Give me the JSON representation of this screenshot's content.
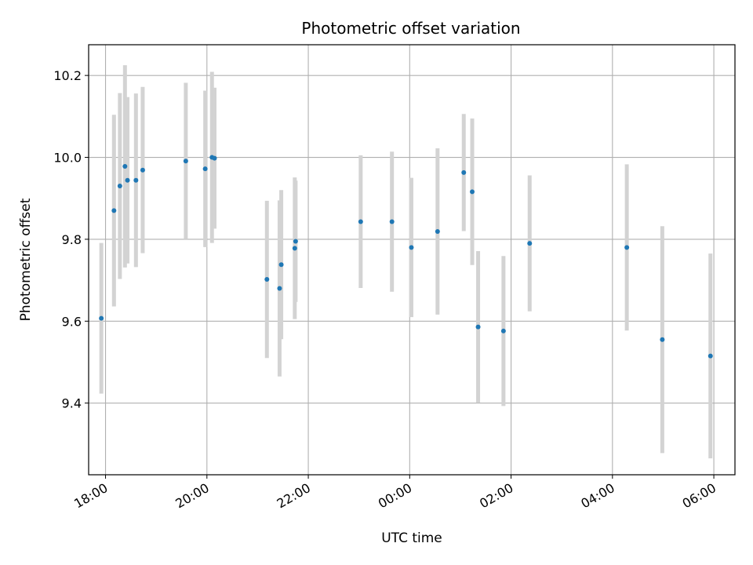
{
  "chart_data": {
    "type": "scatter",
    "title": "Photometric offset variation",
    "xlabel": "UTC time",
    "ylabel": "Photometric offset",
    "x_unit": "UTC time",
    "xlim": [
      "17:40",
      "06:25 (+1d)"
    ],
    "ylim": [
      9.225,
      10.275
    ],
    "x_ticks": [
      "18:00",
      "20:00",
      "22:00",
      "00:00",
      "02:00",
      "04:00",
      "06:00"
    ],
    "y_ticks": [
      "9.4",
      "9.6",
      "9.8",
      "10.0",
      "10.2"
    ],
    "grid": true,
    "series_color": "#1f77b4",
    "errorbar_color": "#d3d3d3",
    "points": [
      {
        "t": "17:55",
        "y": 9.607,
        "lo": 9.423,
        "hi": 9.791
      },
      {
        "t": "18:10",
        "y": 9.87,
        "lo": 9.636,
        "hi": 10.104
      },
      {
        "t": "18:17",
        "y": 9.93,
        "lo": 9.703,
        "hi": 10.157
      },
      {
        "t": "18:23",
        "y": 9.978,
        "lo": 9.731,
        "hi": 10.225
      },
      {
        "t": "18:26",
        "y": 9.944,
        "lo": 9.741,
        "hi": 10.147
      },
      {
        "t": "18:36",
        "y": 9.944,
        "lo": 9.732,
        "hi": 10.156
      },
      {
        "t": "18:44",
        "y": 9.969,
        "lo": 9.766,
        "hi": 10.172
      },
      {
        "t": "19:35",
        "y": 9.991,
        "lo": 9.8,
        "hi": 10.182
      },
      {
        "t": "19:58",
        "y": 9.972,
        "lo": 9.781,
        "hi": 10.163
      },
      {
        "t": "20:06",
        "y": 10.0,
        "lo": 9.791,
        "hi": 10.209
      },
      {
        "t": "20:09",
        "y": 9.998,
        "lo": 9.826,
        "hi": 10.17
      },
      {
        "t": "21:11",
        "y": 9.702,
        "lo": 9.51,
        "hi": 9.894
      },
      {
        "t": "21:26",
        "y": 9.68,
        "lo": 9.465,
        "hi": 9.895
      },
      {
        "t": "21:28",
        "y": 9.738,
        "lo": 9.556,
        "hi": 9.92
      },
      {
        "t": "21:44",
        "y": 9.778,
        "lo": 9.605,
        "hi": 9.951
      },
      {
        "t": "21:45",
        "y": 9.795,
        "lo": 9.647,
        "hi": 9.943
      },
      {
        "t": "23:02",
        "y": 9.843,
        "lo": 9.681,
        "hi": 10.005
      },
      {
        "t": "23:39",
        "y": 9.843,
        "lo": 9.672,
        "hi": 10.014
      },
      {
        "t": "00:02",
        "y": 9.78,
        "lo": 9.61,
        "hi": 9.95
      },
      {
        "t": "00:33",
        "y": 9.819,
        "lo": 9.616,
        "hi": 10.022
      },
      {
        "t": "01:04",
        "y": 9.963,
        "lo": 9.82,
        "hi": 10.106
      },
      {
        "t": "01:14",
        "y": 9.916,
        "lo": 9.737,
        "hi": 10.095
      },
      {
        "t": "01:21",
        "y": 9.586,
        "lo": 9.401,
        "hi": 9.771
      },
      {
        "t": "01:51",
        "y": 9.576,
        "lo": 9.393,
        "hi": 9.759
      },
      {
        "t": "02:22",
        "y": 9.79,
        "lo": 9.624,
        "hi": 9.956
      },
      {
        "t": "04:17",
        "y": 9.78,
        "lo": 9.577,
        "hi": 9.983
      },
      {
        "t": "04:59",
        "y": 9.555,
        "lo": 9.278,
        "hi": 9.832
      },
      {
        "t": "05:56",
        "y": 9.515,
        "lo": 9.265,
        "hi": 9.765
      }
    ]
  }
}
